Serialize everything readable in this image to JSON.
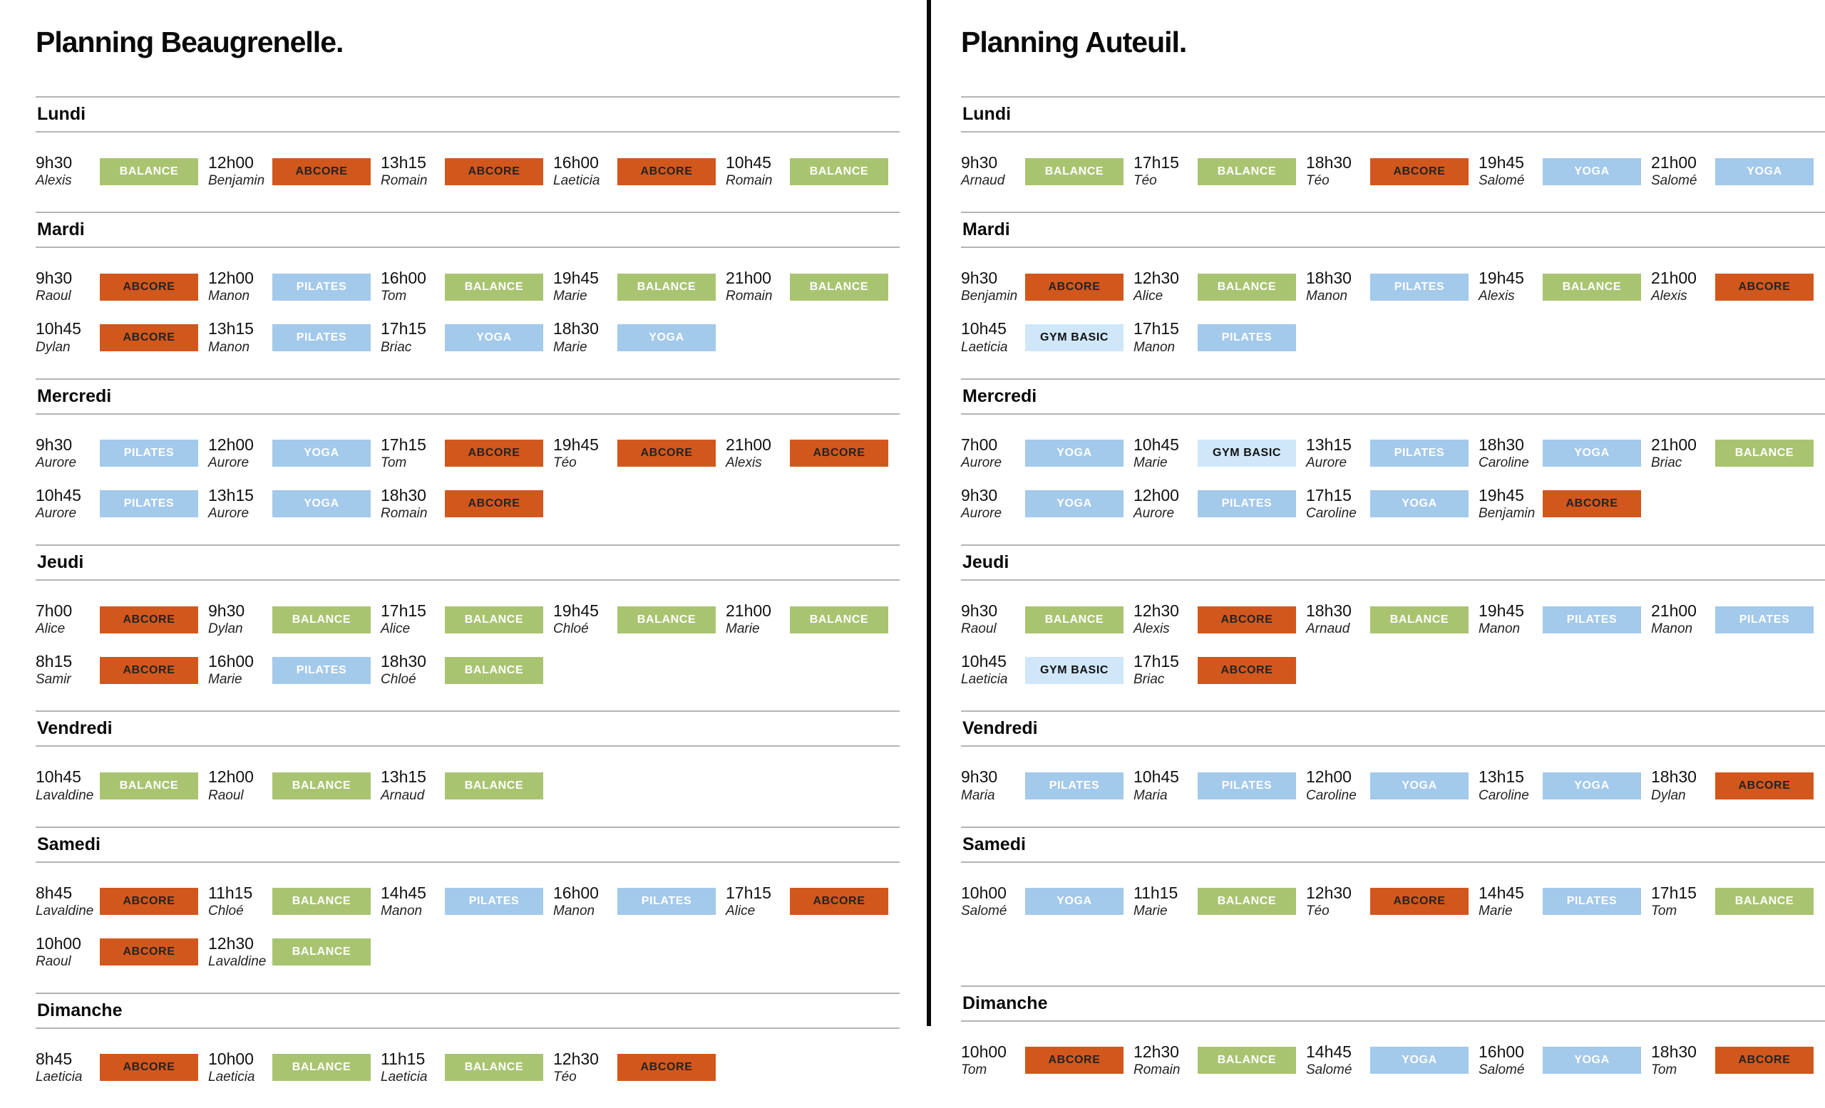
{
  "class_styles": {
    "BALANCE": {
      "bg": "#a9c471",
      "fg": "#ffffff"
    },
    "ABCORE": {
      "bg": "#d2571c",
      "fg": "#232323"
    },
    "PILATES": {
      "bg": "#a3c9eb",
      "fg": "#ffffff"
    },
    "YOGA": {
      "bg": "#a3c9eb",
      "fg": "#ffffff"
    },
    "GYM BASIC": {
      "bg": "#cfe7f9",
      "fg": "#111111"
    }
  },
  "panels": [
    {
      "title": "Planning Beaugrenelle.",
      "days": [
        {
          "name": "Lundi",
          "rows": [
            [
              {
                "time": "9h30",
                "coach": "Alexis",
                "activity": "BALANCE"
              },
              {
                "time": "12h00",
                "coach": "Benjamin",
                "activity": "ABCORE"
              },
              {
                "time": "13h15",
                "coach": "Romain",
                "activity": "ABCORE"
              },
              {
                "time": "16h00",
                "coach": "Laeticia",
                "activity": "ABCORE"
              },
              {
                "time": "10h45",
                "coach": "Romain",
                "activity": "BALANCE"
              }
            ]
          ]
        },
        {
          "name": "Mardi",
          "rows": [
            [
              {
                "time": "9h30",
                "coach": "Raoul",
                "activity": "ABCORE"
              },
              {
                "time": "12h00",
                "coach": "Manon",
                "activity": "PILATES"
              },
              {
                "time": "16h00",
                "coach": "Tom",
                "activity": "BALANCE"
              },
              {
                "time": "19h45",
                "coach": "Marie",
                "activity": "BALANCE"
              },
              {
                "time": "21h00",
                "coach": "Romain",
                "activity": "BALANCE"
              }
            ],
            [
              {
                "time": "10h45",
                "coach": "Dylan",
                "activity": "ABCORE"
              },
              {
                "time": "13h15",
                "coach": "Manon",
                "activity": "PILATES"
              },
              {
                "time": "17h15",
                "coach": "Briac",
                "activity": "YOGA"
              },
              {
                "time": "18h30",
                "coach": "Marie",
                "activity": "YOGA"
              }
            ]
          ]
        },
        {
          "name": "Mercredi",
          "rows": [
            [
              {
                "time": "9h30",
                "coach": "Aurore",
                "activity": "PILATES"
              },
              {
                "time": "12h00",
                "coach": "Aurore",
                "activity": "YOGA"
              },
              {
                "time": "17h15",
                "coach": "Tom",
                "activity": "ABCORE"
              },
              {
                "time": "19h45",
                "coach": "Téo",
                "activity": "ABCORE"
              },
              {
                "time": "21h00",
                "coach": "Alexis",
                "activity": "ABCORE"
              }
            ],
            [
              {
                "time": "10h45",
                "coach": "Aurore",
                "activity": "PILATES"
              },
              {
                "time": "13h15",
                "coach": "Aurore",
                "activity": "YOGA"
              },
              {
                "time": "18h30",
                "coach": "Romain",
                "activity": "ABCORE"
              }
            ]
          ]
        },
        {
          "name": "Jeudi",
          "rows": [
            [
              {
                "time": "7h00",
                "coach": "Alice",
                "activity": "ABCORE"
              },
              {
                "time": "9h30",
                "coach": "Dylan",
                "activity": "BALANCE"
              },
              {
                "time": "17h15",
                "coach": "Alice",
                "activity": "BALANCE"
              },
              {
                "time": "19h45",
                "coach": "Chloé",
                "activity": "BALANCE"
              },
              {
                "time": "21h00",
                "coach": "Marie",
                "activity": "BALANCE"
              }
            ],
            [
              {
                "time": "8h15",
                "coach": "Samir",
                "activity": "ABCORE"
              },
              {
                "time": "16h00",
                "coach": "Marie",
                "activity": "PILATES"
              },
              {
                "time": "18h30",
                "coach": "Chloé",
                "activity": "BALANCE"
              }
            ]
          ]
        },
        {
          "name": "Vendredi",
          "rows": [
            [
              {
                "time": "10h45",
                "coach": "Lavaldine",
                "activity": "BALANCE"
              },
              {
                "time": "12h00",
                "coach": "Raoul",
                "activity": "BALANCE"
              },
              {
                "time": "13h15",
                "coach": "Arnaud",
                "activity": "BALANCE"
              }
            ]
          ]
        },
        {
          "name": "Samedi",
          "rows": [
            [
              {
                "time": "8h45",
                "coach": "Lavaldine",
                "activity": "ABCORE"
              },
              {
                "time": "11h15",
                "coach": "Chloé",
                "activity": "BALANCE"
              },
              {
                "time": "14h45",
                "coach": "Manon",
                "activity": "PILATES"
              },
              {
                "time": "16h00",
                "coach": "Manon",
                "activity": "PILATES"
              },
              {
                "time": "17h15",
                "coach": "Alice",
                "activity": "ABCORE"
              }
            ],
            [
              {
                "time": "10h00",
                "coach": "Raoul",
                "activity": "ABCORE"
              },
              {
                "time": "12h30",
                "coach": "Lavaldine",
                "activity": "BALANCE"
              }
            ]
          ]
        },
        {
          "name": "Dimanche",
          "rows": [
            [
              {
                "time": "8h45",
                "coach": "Laeticia",
                "activity": "ABCORE"
              },
              {
                "time": "10h00",
                "coach": "Laeticia",
                "activity": "BALANCE"
              },
              {
                "time": "11h15",
                "coach": "Laeticia",
                "activity": "BALANCE"
              },
              {
                "time": "12h30",
                "coach": "Téo",
                "activity": "ABCORE"
              }
            ]
          ]
        }
      ]
    },
    {
      "title": "Planning Auteuil.",
      "days": [
        {
          "name": "Lundi",
          "rows": [
            [
              {
                "time": "9h30",
                "coach": "Arnaud",
                "activity": "BALANCE"
              },
              {
                "time": "17h15",
                "coach": "Téo",
                "activity": "BALANCE"
              },
              {
                "time": "18h30",
                "coach": "Téo",
                "activity": "ABCORE"
              },
              {
                "time": "19h45",
                "coach": "Salomé",
                "activity": "YOGA"
              },
              {
                "time": "21h00",
                "coach": "Salomé",
                "activity": "YOGA"
              }
            ]
          ]
        },
        {
          "name": "Mardi",
          "rows": [
            [
              {
                "time": "9h30",
                "coach": "Benjamin",
                "activity": "ABCORE"
              },
              {
                "time": "12h30",
                "coach": "Alice",
                "activity": "BALANCE"
              },
              {
                "time": "18h30",
                "coach": "Manon",
                "activity": "PILATES"
              },
              {
                "time": "19h45",
                "coach": "Alexis",
                "activity": "BALANCE"
              },
              {
                "time": "21h00",
                "coach": "Alexis",
                "activity": "ABCORE"
              }
            ],
            [
              {
                "time": "10h45",
                "coach": "Laeticia",
                "activity": "GYM BASIC"
              },
              {
                "time": "17h15",
                "coach": "Manon",
                "activity": "PILATES"
              }
            ]
          ]
        },
        {
          "name": "Mercredi",
          "rows": [
            [
              {
                "time": "7h00",
                "coach": "Aurore",
                "activity": "YOGA"
              },
              {
                "time": "10h45",
                "coach": "Marie",
                "activity": "GYM BASIC"
              },
              {
                "time": "13h15",
                "coach": "Aurore",
                "activity": "PILATES"
              },
              {
                "time": "18h30",
                "coach": "Caroline",
                "activity": "YOGA"
              },
              {
                "time": "21h00",
                "coach": "Briac",
                "activity": "BALANCE"
              }
            ],
            [
              {
                "time": "9h30",
                "coach": "Aurore",
                "activity": "YOGA"
              },
              {
                "time": "12h00",
                "coach": "Aurore",
                "activity": "PILATES"
              },
              {
                "time": "17h15",
                "coach": "Caroline",
                "activity": "YOGA"
              },
              {
                "time": "19h45",
                "coach": "Benjamin",
                "activity": "ABCORE"
              }
            ]
          ]
        },
        {
          "name": "Jeudi",
          "rows": [
            [
              {
                "time": "9h30",
                "coach": "Raoul",
                "activity": "BALANCE"
              },
              {
                "time": "12h30",
                "coach": "Alexis",
                "activity": "ABCORE"
              },
              {
                "time": "18h30",
                "coach": "Arnaud",
                "activity": "BALANCE"
              },
              {
                "time": "19h45",
                "coach": "Manon",
                "activity": "PILATES"
              },
              {
                "time": "21h00",
                "coach": "Manon",
                "activity": "PILATES"
              }
            ],
            [
              {
                "time": "10h45",
                "coach": "Laeticia",
                "activity": "GYM BASIC"
              },
              {
                "time": "17h15",
                "coach": "Briac",
                "activity": "ABCORE"
              }
            ]
          ]
        },
        {
          "name": "Vendredi",
          "rows": [
            [
              {
                "time": "9h30",
                "coach": "Maria",
                "activity": "PILATES"
              },
              {
                "time": "10h45",
                "coach": "Maria",
                "activity": "PILATES"
              },
              {
                "time": "12h00",
                "coach": "Caroline",
                "activity": "YOGA"
              },
              {
                "time": "13h15",
                "coach": "Caroline",
                "activity": "YOGA"
              },
              {
                "time": "18h30",
                "coach": "Dylan",
                "activity": "ABCORE"
              }
            ]
          ]
        },
        {
          "name": "Samedi",
          "tall": true,
          "rows": [
            [
              {
                "time": "10h00",
                "coach": "Salomé",
                "activity": "YOGA"
              },
              {
                "time": "11h15",
                "coach": "Marie",
                "activity": "BALANCE"
              },
              {
                "time": "12h30",
                "coach": "Téo",
                "activity": "ABCORE"
              },
              {
                "time": "14h45",
                "coach": "Marie",
                "activity": "PILATES"
              },
              {
                "time": "17h15",
                "coach": "Tom",
                "activity": "BALANCE"
              }
            ]
          ]
        },
        {
          "name": "Dimanche",
          "rows": [
            [
              {
                "time": "10h00",
                "coach": "Tom",
                "activity": "ABCORE"
              },
              {
                "time": "12h30",
                "coach": "Romain",
                "activity": "BALANCE"
              },
              {
                "time": "14h45",
                "coach": "Salomé",
                "activity": "YOGA"
              },
              {
                "time": "16h00",
                "coach": "Salomé",
                "activity": "YOGA"
              },
              {
                "time": "18h30",
                "coach": "Tom",
                "activity": "ABCORE"
              }
            ]
          ]
        }
      ]
    }
  ]
}
